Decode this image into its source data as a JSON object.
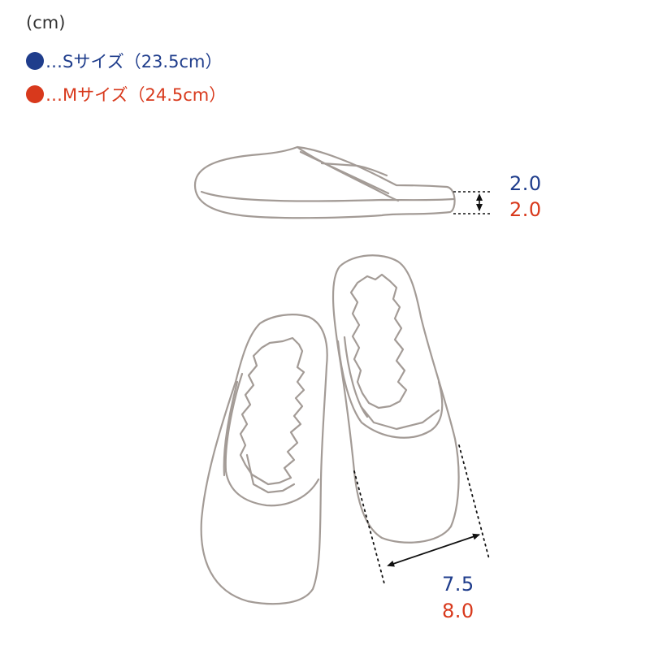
{
  "unit_label": "(cm)",
  "legend": [
    {
      "label": "…Sサイズ（23.5cm）",
      "color": "#1f3d8c"
    },
    {
      "label": "…Mサイズ（24.5cm）",
      "color": "#d8391c"
    }
  ],
  "measurements": {
    "sole_height": {
      "s": "2.0",
      "m": "2.0"
    },
    "opening_width": {
      "s": "7.5",
      "m": "8.0"
    }
  },
  "colors": {
    "outline": "#a39b96",
    "guide": "#111111"
  }
}
